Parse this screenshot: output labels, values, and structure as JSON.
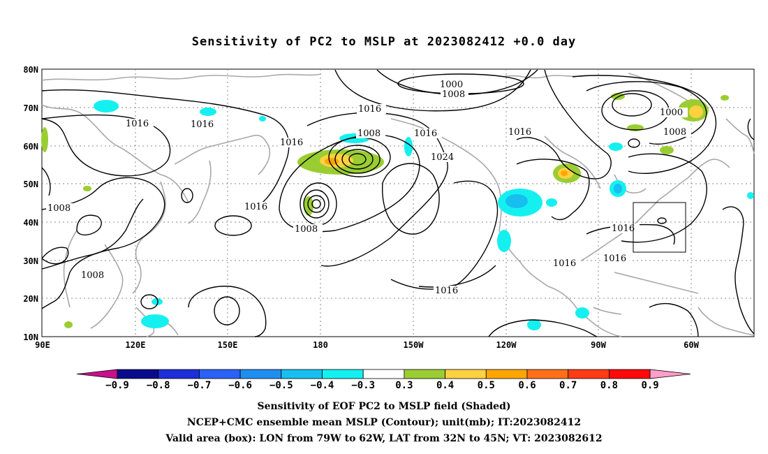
{
  "title": "Sensitivity of PC2 to MSLP at 2023082412 +0.0 day",
  "map": {
    "lat_labels": [
      "80N",
      "70N",
      "60N",
      "50N",
      "40N",
      "30N",
      "20N",
      "10N"
    ],
    "lon_labels": [
      "90E",
      "120E",
      "150E",
      "180",
      "150W",
      "120W",
      "90W",
      "60W"
    ],
    "contour_labels": [
      "1000",
      "1008",
      "1016",
      "1016",
      "1016",
      "1008",
      "1016",
      "1024",
      "1016",
      "1000",
      "1008",
      "1008",
      "1016",
      "1016",
      "1008",
      "1008",
      "1016",
      "1016",
      "1016",
      "1016",
      "1016"
    ],
    "valid_box": {
      "lon_west": "79W",
      "lon_east": "62W",
      "lat_south": "32N",
      "lat_north": "45N"
    }
  },
  "colorbar": {
    "labels": [
      "−0.9",
      "−0.8",
      "−0.7",
      "−0.6",
      "−0.5",
      "−0.4",
      "−0.3",
      "0.3",
      "0.4",
      "0.5",
      "0.6",
      "0.7",
      "0.8",
      "0.9"
    ],
    "colors": [
      "#0a0a8c",
      "#1c2fd8",
      "#2a62f5",
      "#1f8ef0",
      "#16bff0",
      "#14f0f0",
      "#ffffff",
      "#9acd32",
      "#ffd040",
      "#ffa500",
      "#ff7018",
      "#ff3c14",
      "#ff0a0a"
    ],
    "low_end_color": "#c8108c",
    "high_end_color": "#ff9ec8"
  },
  "captions": [
    "Sensitivity of EOF PC2 to MSLP field (Shaded)",
    "NCEP+CMC ensemble mean MSLP (Contour); unit(mb); IT:2023082412",
    "Valid area (box): LON from 79W to 62W, LAT from 32N to 45N; VT: 2023082612"
  ]
}
